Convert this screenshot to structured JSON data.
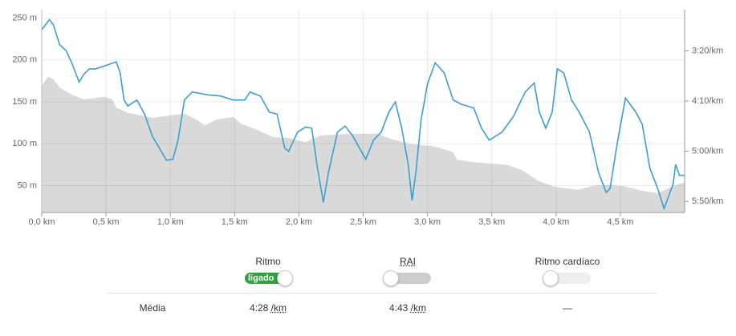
{
  "chart_data": {
    "type": "line",
    "xlim": [
      0,
      5
    ],
    "xticks": [
      {
        "value": 0,
        "label": "0,0 km"
      },
      {
        "value": 0.5,
        "label": "0,5 km"
      },
      {
        "value": 1,
        "label": "1,0 km"
      },
      {
        "value": 1.5,
        "label": "1,5 km"
      },
      {
        "value": 2,
        "label": "2,0 km"
      },
      {
        "value": 2.5,
        "label": "2,5 km"
      },
      {
        "value": 3,
        "label": "3,0 km"
      },
      {
        "value": 3.5,
        "label": "3,5 km"
      },
      {
        "value": 4,
        "label": "4,0 km"
      },
      {
        "value": 4.5,
        "label": "4,5 km"
      }
    ],
    "ylim": [
      18,
      260
    ],
    "yticks": [
      {
        "value": 50,
        "label": "50 m"
      },
      {
        "value": 100,
        "label": "100 m"
      },
      {
        "value": 150,
        "label": "150 m"
      },
      {
        "value": 200,
        "label": "200 m"
      },
      {
        "value": 250,
        "label": "250 m"
      }
    ],
    "y2lim": [
      361,
      159
    ],
    "y2ticks": [
      {
        "value": 200,
        "label": "3:20/km"
      },
      {
        "value": 250,
        "label": "4:10/km"
      },
      {
        "value": 300,
        "label": "5:00/km"
      },
      {
        "value": 350,
        "label": "5:50/km"
      }
    ],
    "grid": true,
    "series": [
      {
        "type": "area",
        "color": "#d9d9d9",
        "x": [
          0,
          0.05,
          0.09,
          0.14,
          0.24,
          0.33,
          0.49,
          0.55,
          0.58,
          0.67,
          0.86,
          1.11,
          1.2,
          1.27,
          1.36,
          1.49,
          1.55,
          1.67,
          1.8,
          1.92,
          2.05,
          2.17,
          2.42,
          2.61,
          2.73,
          2.86,
          3.05,
          3.2,
          3.23,
          3.36,
          3.61,
          3.73,
          3.86,
          3.98,
          4.17,
          4.29,
          4.42,
          4.54,
          4.67,
          4.79,
          4.92,
          5
        ],
        "values": [
          169,
          180,
          177,
          167,
          158,
          153,
          156,
          153,
          143,
          137,
          131,
          136,
          129,
          122,
          129,
          132,
          124,
          117,
          108,
          107,
          102,
          110,
          112,
          112,
          105,
          100,
          97,
          90,
          81,
          78,
          75,
          69,
          56,
          49,
          45,
          50,
          51,
          49,
          44,
          41,
          50,
          54
        ]
      },
      {
        "type": "line",
        "axis": "y2",
        "color": "#3a9fd0",
        "x": [
          0,
          0.06,
          0.09,
          0.14,
          0.19,
          0.24,
          0.29,
          0.33,
          0.37,
          0.42,
          0.49,
          0.58,
          0.61,
          0.64,
          0.67,
          0.74,
          0.8,
          0.86,
          0.92,
          0.97,
          1.02,
          1.06,
          1.11,
          1.17,
          1.3,
          1.39,
          1.49,
          1.58,
          1.62,
          1.7,
          1.77,
          1.83,
          1.89,
          1.92,
          1.99,
          2.05,
          2.1,
          2.14,
          2.19,
          2.23,
          2.3,
          2.36,
          2.42,
          2.52,
          2.58,
          2.64,
          2.7,
          2.75,
          2.8,
          2.85,
          2.88,
          2.91,
          2.95,
          3,
          3.06,
          3.13,
          3.2,
          3.26,
          3.36,
          3.42,
          3.48,
          3.58,
          3.67,
          3.76,
          3.83,
          3.87,
          3.92,
          3.97,
          4.01,
          4.06,
          4.12,
          4.18,
          4.26,
          4.33,
          4.39,
          4.42,
          4.48,
          4.54,
          4.62,
          4.67,
          4.73,
          4.79,
          4.84,
          4.91,
          4.93,
          4.96,
          5
        ],
        "values": [
          179,
          169,
          174,
          194,
          200,
          214,
          231,
          223,
          218,
          218,
          215,
          211,
          222,
          249,
          255,
          249,
          263,
          285,
          298,
          309,
          308,
          289,
          249,
          241,
          244,
          245,
          249,
          249,
          241,
          245,
          261,
          263,
          297,
          300,
          281,
          276,
          277,
          313,
          351,
          321,
          281,
          275,
          285,
          308,
          289,
          281,
          261,
          251,
          277,
          313,
          349,
          321,
          269,
          233,
          212,
          222,
          249,
          253,
          257,
          277,
          289,
          281,
          265,
          241,
          232,
          261,
          277,
          261,
          218,
          222,
          249,
          261,
          281,
          321,
          341,
          337,
          289,
          247,
          261,
          273,
          317,
          337,
          357,
          333,
          313,
          324,
          324
        ]
      }
    ]
  },
  "controls": [
    {
      "label": "Ritmo",
      "state": "ligado"
    },
    {
      "label": "RAI"
    },
    {
      "label": "Ritmo cardíaco"
    }
  ],
  "summary": {
    "label": "Média",
    "cells": [
      {
        "value": "4:28",
        "unit": "/km"
      },
      {
        "value": "4:43",
        "unit": "/km"
      },
      {
        "value": "—"
      }
    ]
  }
}
